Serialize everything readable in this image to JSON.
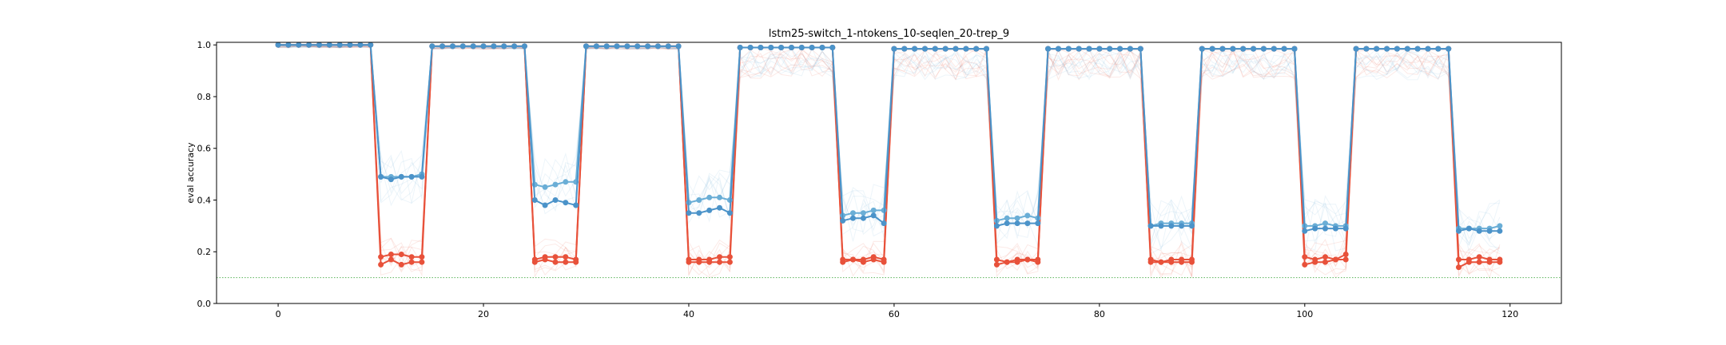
{
  "chart_data": {
    "type": "line",
    "title": "lstm25-switch_1-ntokens_10-seqlen_20-trep_9",
    "xlabel": "",
    "ylabel": "eval accuracy",
    "xlim": [
      -6,
      125
    ],
    "ylim": [
      0,
      1.01
    ],
    "xticks": [
      0,
      20,
      40,
      60,
      80,
      100,
      120
    ],
    "yticks": [
      0.0,
      0.2,
      0.4,
      0.6,
      0.8,
      1.0
    ],
    "xtick_labels": [
      "0",
      "20",
      "40",
      "60",
      "80",
      "100",
      "120"
    ],
    "ytick_labels": [
      "0.0",
      "0.2",
      "0.4",
      "0.6",
      "0.8",
      "1.0"
    ],
    "grid": false,
    "legend": "none",
    "colors": {
      "red": "#e8513a",
      "blue": "#4b93c9",
      "blue_light": "#6aaed6",
      "baseline": "#5ab35a"
    },
    "reference_line": {
      "y": 0.1,
      "style": "dotted",
      "color": "#5ab35a"
    },
    "phases": [
      {
        "start": 0,
        "end": 9,
        "value": 1.0
      },
      {
        "start": 10,
        "end": 14,
        "red_a": [
          0.18,
          0.19,
          0.19,
          0.18,
          0.18
        ],
        "red_b": [
          0.15,
          0.17,
          0.15,
          0.16,
          0.16
        ],
        "blue_a": [
          0.49,
          0.49,
          0.49,
          0.49,
          0.5
        ],
        "blue_b": [
          0.49,
          0.48,
          0.49,
          0.49,
          0.49
        ]
      },
      {
        "start": 15,
        "end": 24,
        "value": 0.995
      },
      {
        "start": 25,
        "end": 29,
        "red_a": [
          0.17,
          0.18,
          0.18,
          0.18,
          0.17
        ],
        "red_b": [
          0.16,
          0.17,
          0.16,
          0.16,
          0.16
        ],
        "blue_a": [
          0.46,
          0.45,
          0.46,
          0.47,
          0.47
        ],
        "blue_b": [
          0.4,
          0.38,
          0.4,
          0.39,
          0.38
        ]
      },
      {
        "start": 30,
        "end": 39,
        "value": 0.995
      },
      {
        "start": 40,
        "end": 44,
        "red_a": [
          0.17,
          0.17,
          0.17,
          0.18,
          0.18
        ],
        "red_b": [
          0.16,
          0.16,
          0.16,
          0.16,
          0.16
        ],
        "blue_a": [
          0.39,
          0.4,
          0.41,
          0.41,
          0.4
        ],
        "blue_b": [
          0.35,
          0.35,
          0.36,
          0.37,
          0.35
        ]
      },
      {
        "start": 45,
        "end": 54,
        "value": 0.99
      },
      {
        "start": 55,
        "end": 59,
        "red_a": [
          0.17,
          0.17,
          0.17,
          0.18,
          0.17
        ],
        "red_b": [
          0.16,
          0.17,
          0.16,
          0.17,
          0.16
        ],
        "blue_a": [
          0.34,
          0.35,
          0.35,
          0.36,
          0.36
        ],
        "blue_b": [
          0.32,
          0.33,
          0.33,
          0.34,
          0.31
        ]
      },
      {
        "start": 60,
        "end": 69,
        "value": 0.985
      },
      {
        "start": 70,
        "end": 74,
        "red_a": [
          0.17,
          0.16,
          0.17,
          0.17,
          0.17
        ],
        "red_b": [
          0.15,
          0.16,
          0.16,
          0.17,
          0.16
        ],
        "blue_a": [
          0.32,
          0.33,
          0.33,
          0.34,
          0.33
        ],
        "blue_b": [
          0.3,
          0.31,
          0.31,
          0.31,
          0.31
        ]
      },
      {
        "start": 75,
        "end": 84,
        "value": 0.985
      },
      {
        "start": 85,
        "end": 89,
        "red_a": [
          0.17,
          0.16,
          0.17,
          0.17,
          0.17
        ],
        "red_b": [
          0.16,
          0.16,
          0.16,
          0.16,
          0.16
        ],
        "blue_a": [
          0.3,
          0.31,
          0.31,
          0.31,
          0.31
        ],
        "blue_b": [
          0.3,
          0.3,
          0.3,
          0.3,
          0.3
        ]
      },
      {
        "start": 90,
        "end": 99,
        "value": 0.985
      },
      {
        "start": 100,
        "end": 104,
        "red_a": [
          0.18,
          0.17,
          0.18,
          0.17,
          0.19
        ],
        "red_b": [
          0.15,
          0.16,
          0.16,
          0.17,
          0.17
        ],
        "blue_a": [
          0.3,
          0.3,
          0.31,
          0.3,
          0.3
        ],
        "blue_b": [
          0.28,
          0.29,
          0.29,
          0.29,
          0.29
        ]
      },
      {
        "start": 105,
        "end": 114,
        "value": 0.985
      },
      {
        "start": 115,
        "end": 119,
        "red_a": [
          0.17,
          0.17,
          0.18,
          0.17,
          0.17
        ],
        "red_b": [
          0.14,
          0.16,
          0.16,
          0.16,
          0.16
        ],
        "blue_a": [
          0.29,
          0.29,
          0.29,
          0.29,
          0.3
        ],
        "blue_b": [
          0.28,
          0.29,
          0.28,
          0.28,
          0.28
        ]
      }
    ]
  }
}
